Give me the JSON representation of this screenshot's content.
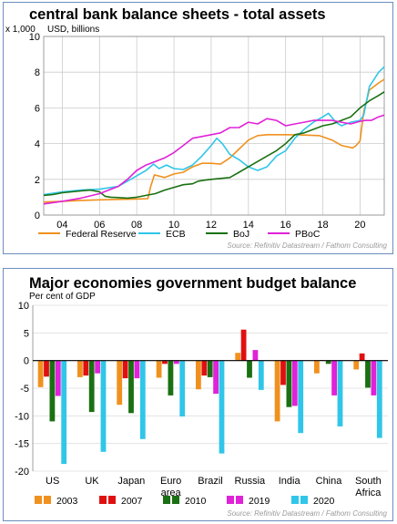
{
  "chart_data": [
    {
      "type": "line",
      "title": "central bank balance sheets - total assets",
      "multiplier_label": "x 1,000",
      "ylabel": "USD, billions",
      "source": "Source: Refinitiv Datastream / Fathom Consulting",
      "xlim": [
        2003,
        2021.3
      ],
      "ylim": [
        0,
        10
      ],
      "yticks": [
        0,
        2,
        4,
        6,
        8,
        10
      ],
      "xticks": [
        2004,
        2006,
        2008,
        2010,
        2012,
        2014,
        2016,
        2018,
        2020
      ],
      "xtick_labels": [
        "04",
        "06",
        "08",
        "10",
        "12",
        "14",
        "16",
        "18",
        "20"
      ],
      "legend_position": "bottom",
      "series": [
        {
          "name": "Federal Reserve",
          "color": "#f0911e",
          "x": [
            2003,
            2004,
            2005,
            2006,
            2007,
            2008,
            2008.6,
            2008.75,
            2008.95,
            2009.5,
            2010,
            2010.5,
            2011,
            2011.5,
            2012,
            2012.5,
            2013,
            2013.5,
            2014,
            2014.5,
            2015,
            2016,
            2017,
            2017.8,
            2018.5,
            2019,
            2019.6,
            2019.75,
            2020,
            2020.2,
            2020.5,
            2021,
            2021.3
          ],
          "y": [
            0.73,
            0.77,
            0.82,
            0.85,
            0.88,
            0.9,
            0.92,
            1.6,
            2.25,
            2.1,
            2.3,
            2.4,
            2.7,
            2.9,
            2.9,
            2.85,
            3.2,
            3.7,
            4.2,
            4.45,
            4.5,
            4.5,
            4.48,
            4.45,
            4.2,
            3.9,
            3.76,
            3.85,
            4.15,
            5.8,
            7.0,
            7.4,
            7.6
          ]
        },
        {
          "name": "ECB",
          "color": "#30c6e8",
          "x": [
            2003,
            2004,
            2005,
            2006,
            2007,
            2007.5,
            2008,
            2008.5,
            2008.9,
            2009.2,
            2009.6,
            2010,
            2010.5,
            2011,
            2011.5,
            2012,
            2012.3,
            2012.6,
            2013,
            2013.5,
            2014,
            2014.5,
            2015,
            2015.5,
            2016,
            2016.5,
            2017,
            2017.5,
            2018,
            2018.3,
            2018.7,
            2019,
            2019.5,
            2020,
            2020.2,
            2020.5,
            2021,
            2021.3
          ],
          "y": [
            1.15,
            1.3,
            1.4,
            1.45,
            1.6,
            1.9,
            2.2,
            2.5,
            2.85,
            2.6,
            2.8,
            2.6,
            2.55,
            2.8,
            3.3,
            3.9,
            4.3,
            4.0,
            3.4,
            3.1,
            2.7,
            2.5,
            2.7,
            3.3,
            3.6,
            4.3,
            4.8,
            5.2,
            5.5,
            5.7,
            5.2,
            5.0,
            5.2,
            5.3,
            5.6,
            7.2,
            8.0,
            8.3
          ]
        },
        {
          "name": "BoJ",
          "color": "#1a7012",
          "x": [
            2003,
            2003.5,
            2004,
            2004.5,
            2005,
            2005.5,
            2006,
            2006.3,
            2006.6,
            2007,
            2007.5,
            2008,
            2008.5,
            2009,
            2009.5,
            2010,
            2010.5,
            2011,
            2011.3,
            2011.6,
            2012,
            2012.5,
            2013,
            2013.5,
            2014,
            2014.5,
            2015,
            2015.5,
            2016,
            2016.5,
            2017,
            2017.5,
            2018,
            2018.5,
            2019,
            2019.5,
            2020,
            2020.5,
            2021,
            2021.3
          ],
          "y": [
            1.1,
            1.15,
            1.25,
            1.3,
            1.35,
            1.4,
            1.3,
            1.05,
            1.0,
            0.98,
            0.95,
            1.0,
            1.1,
            1.2,
            1.4,
            1.55,
            1.7,
            1.75,
            1.9,
            1.95,
            2.0,
            2.05,
            2.1,
            2.4,
            2.7,
            3.0,
            3.3,
            3.6,
            4.0,
            4.5,
            4.6,
            4.8,
            5.0,
            5.1,
            5.3,
            5.5,
            6.0,
            6.4,
            6.7,
            6.9
          ]
        },
        {
          "name": "PBoC",
          "color": "#e022d8",
          "x": [
            2003,
            2004,
            2005,
            2006,
            2007,
            2007.5,
            2008,
            2008.5,
            2009,
            2009.5,
            2010,
            2010.5,
            2011,
            2011.5,
            2012,
            2012.5,
            2013,
            2013.5,
            2014,
            2014.5,
            2015,
            2015.5,
            2016,
            2016.5,
            2017,
            2017.5,
            2018,
            2018.5,
            2019,
            2019.5,
            2020,
            2020.3,
            2020.6,
            2021,
            2021.3
          ],
          "y": [
            0.62,
            0.77,
            0.95,
            1.2,
            1.6,
            2.0,
            2.5,
            2.8,
            3.0,
            3.2,
            3.5,
            3.9,
            4.3,
            4.4,
            4.5,
            4.6,
            4.9,
            4.9,
            5.2,
            5.1,
            5.4,
            5.3,
            5.0,
            5.1,
            5.2,
            5.3,
            5.3,
            5.3,
            5.2,
            5.1,
            5.25,
            5.3,
            5.3,
            5.5,
            5.6
          ]
        }
      ]
    },
    {
      "type": "bar",
      "title": "Major economies government budget balance",
      "ylabel": "Per cent of GDP",
      "source": "Source: Refinitiv Datastream / Fathom Consulting",
      "ylim": [
        -20,
        10
      ],
      "yticks": [
        -20,
        -15,
        -10,
        -5,
        0,
        5,
        10
      ],
      "categories": [
        [
          "US"
        ],
        [
          "UK"
        ],
        [
          "Japan"
        ],
        [
          "Euro",
          "area"
        ],
        [
          "Brazil"
        ],
        [
          "Russia"
        ],
        [
          "India"
        ],
        [
          "China"
        ],
        [
          "South",
          "Africa"
        ]
      ],
      "legend_position": "bottom",
      "series": [
        {
          "name": "2003",
          "color": "#f0911e",
          "values": [
            -4.8,
            -3.0,
            -8.0,
            -3.1,
            -5.2,
            1.4,
            -11.0,
            -2.3,
            -1.6
          ]
        },
        {
          "name": "2007",
          "color": "#e01010",
          "values": [
            -2.9,
            -2.7,
            -3.2,
            -0.6,
            -2.7,
            5.6,
            -4.4,
            0.1,
            1.3
          ]
        },
        {
          "name": "2010",
          "color": "#1a7012",
          "values": [
            -11.0,
            -9.3,
            -9.5,
            -6.3,
            -3.0,
            -3.1,
            -8.4,
            -0.6,
            -4.9
          ]
        },
        {
          "name": "2019",
          "color": "#e022d8",
          "values": [
            -6.4,
            -2.3,
            -3.2,
            -0.6,
            -6.0,
            1.9,
            -8.2,
            -6.3,
            -6.3
          ]
        },
        {
          "name": "2020",
          "color": "#30c6e8",
          "values": [
            -18.7,
            -16.5,
            -14.2,
            -10.1,
            -16.8,
            -5.3,
            -13.1,
            -11.9,
            -14.0
          ]
        }
      ]
    }
  ]
}
